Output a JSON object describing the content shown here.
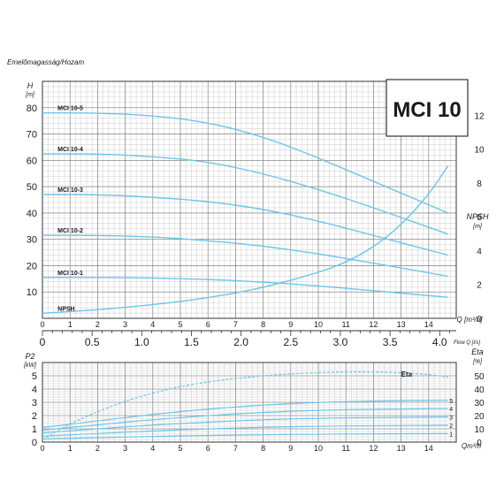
{
  "chart_data": [
    {
      "type": "line",
      "title": "MCI 10",
      "subtitle": "Emelőmagasság/Hozam",
      "y_label": "H",
      "y_unit": "[m]",
      "y_right_label": "NPSH",
      "y_right_unit": "[m]",
      "x_label": "Q [m³/h]",
      "x2_label": "Flow Q [l/s]",
      "xlim": [
        0,
        15
      ],
      "ylim": [
        0,
        90
      ],
      "y_right_lim": [
        0,
        14
      ],
      "x_ticks": [
        0,
        1,
        2,
        3,
        4,
        5,
        6,
        7,
        8,
        9,
        10,
        11,
        12,
        13,
        14
      ],
      "x2_ticks": [
        "0",
        "0.5",
        "1.0",
        "1.5",
        "2.0",
        "2.5",
        "3.0",
        "3.5",
        "4.0"
      ],
      "y_ticks": [
        10,
        20,
        30,
        40,
        50,
        60,
        70,
        80
      ],
      "y_right_ticks": [
        0,
        2,
        4,
        6,
        8,
        10,
        12
      ],
      "series": [
        {
          "name": "MCI 10-5",
          "x": [
            0,
            2,
            4,
            6,
            8,
            10,
            12,
            14.7
          ],
          "y": [
            78,
            78,
            77,
            74.5,
            69,
            61,
            52,
            40
          ]
        },
        {
          "name": "MCI 10-4",
          "x": [
            0,
            2,
            4,
            6,
            8,
            10,
            12,
            14.7
          ],
          "y": [
            62.5,
            62.5,
            61.5,
            59.5,
            55,
            49,
            42,
            32
          ]
        },
        {
          "name": "MCI 10-3",
          "x": [
            0,
            2,
            4,
            6,
            8,
            10,
            12,
            14.7
          ],
          "y": [
            47,
            47,
            46,
            44.5,
            41.5,
            37,
            31.5,
            24
          ]
        },
        {
          "name": "MCI 10-2",
          "x": [
            0,
            2,
            4,
            6,
            8,
            10,
            12,
            14.7
          ],
          "y": [
            31.5,
            31.5,
            31,
            29.5,
            27.5,
            24.5,
            21,
            16
          ]
        },
        {
          "name": "MCI 10-1",
          "x": [
            0,
            2,
            4,
            6,
            8,
            10,
            12,
            14.7
          ],
          "y": [
            15.5,
            15.5,
            15.3,
            14.8,
            13.8,
            12.3,
            10.5,
            8
          ]
        },
        {
          "name": "NPSH",
          "axis": "right",
          "x": [
            0,
            2,
            4,
            6,
            8,
            10,
            11,
            12,
            13,
            14,
            14.7
          ],
          "y": [
            0.3,
            0.5,
            0.8,
            1.2,
            1.8,
            2.7,
            3.3,
            4.2,
            5.5,
            7.3,
            9
          ]
        }
      ]
    },
    {
      "type": "line",
      "y_label": "P2",
      "y_unit": "[kW]",
      "y_right_label": "Eta",
      "y_right_unit": "[%]",
      "x_label": "Qm³/h",
      "xlim": [
        0,
        15
      ],
      "ylim": [
        0,
        6
      ],
      "y_right_lim": [
        0,
        60
      ],
      "x_ticks": [
        0,
        1,
        2,
        3,
        4,
        5,
        6,
        7,
        8,
        9,
        10,
        11,
        12,
        13,
        14
      ],
      "y_ticks": [
        0,
        1,
        2,
        3,
        4,
        5
      ],
      "y_right_ticks": [
        0,
        10,
        20,
        30,
        40,
        50
      ],
      "series": [
        {
          "name": "Eta",
          "axis": "right",
          "x": [
            0,
            1,
            2,
            3,
            4,
            5,
            6,
            7,
            8,
            9,
            10,
            11,
            12,
            13,
            14,
            14.7
          ],
          "y": [
            2,
            14,
            23,
            31,
            37,
            42,
            45.5,
            48,
            50,
            51.5,
            52.5,
            53,
            53,
            52.5,
            51,
            49
          ]
        },
        {
          "name": "5",
          "x": [
            0,
            2,
            4,
            6,
            8,
            10,
            12,
            14.7
          ],
          "y": [
            1.1,
            1.6,
            2.1,
            2.5,
            2.8,
            3.0,
            3.1,
            3.15
          ]
        },
        {
          "name": "4",
          "x": [
            0,
            2,
            4,
            6,
            8,
            10,
            12,
            14.7
          ],
          "y": [
            0.9,
            1.3,
            1.7,
            2.0,
            2.25,
            2.4,
            2.48,
            2.52
          ]
        },
        {
          "name": "3",
          "x": [
            0,
            2,
            4,
            6,
            8,
            10,
            12,
            14.7
          ],
          "y": [
            0.7,
            1.0,
            1.3,
            1.5,
            1.7,
            1.8,
            1.86,
            1.9
          ]
        },
        {
          "name": "2",
          "x": [
            0,
            2,
            4,
            6,
            8,
            10,
            12,
            14.7
          ],
          "y": [
            0.45,
            0.65,
            0.85,
            1.0,
            1.12,
            1.2,
            1.24,
            1.27
          ]
        },
        {
          "name": "1",
          "x": [
            0,
            2,
            4,
            6,
            8,
            10,
            12,
            14.7
          ],
          "y": [
            0.25,
            0.33,
            0.43,
            0.5,
            0.56,
            0.6,
            0.62,
            0.64
          ]
        }
      ]
    }
  ]
}
